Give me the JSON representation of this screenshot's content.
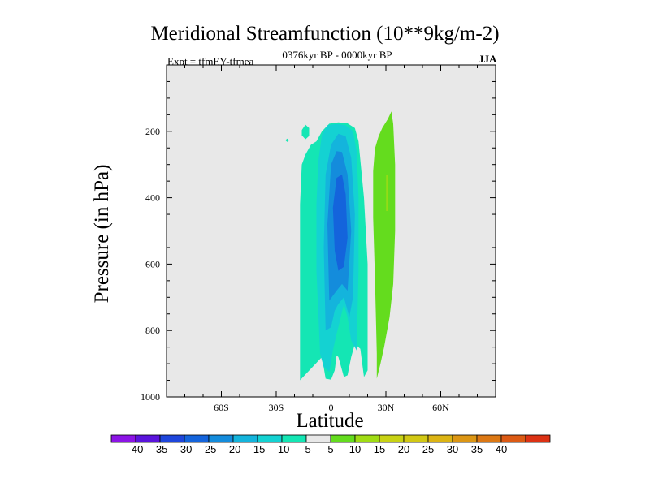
{
  "chart_data": {
    "type": "contour",
    "title": "Meridional Streamfunction (10**9kg/m-2)",
    "subtitle": "0376kyr BP - 0000kyr BP",
    "experiment": "Expt = tfmEY-tfmea",
    "season": "JJA",
    "xlabel": "Latitude",
    "ylabel": "Pressure (in hPa)",
    "xlim": [
      -90,
      90
    ],
    "ylim": [
      1000,
      0
    ],
    "x_ticks": [
      -60,
      -30,
      0,
      30,
      60
    ],
    "x_tick_labels": [
      "60S",
      "30S",
      "0",
      "30N",
      "60N"
    ],
    "y_ticks": [
      200,
      400,
      600,
      800,
      1000
    ],
    "y_tick_labels": [
      "200",
      "400",
      "600",
      "800",
      "1000"
    ],
    "background_color": "#e8e8e8",
    "colorbar": {
      "colors": [
        "#8c14e6",
        "#5a14dc",
        "#1e46dc",
        "#1464dc",
        "#148cdc",
        "#14b4dc",
        "#14d2d2",
        "#14e6b4",
        "#e8e8e8",
        "#64dc1e",
        "#a0dc14",
        "#c8d214",
        "#d2c814",
        "#dcb414",
        "#dc9614",
        "#dc7814",
        "#dc5a14",
        "#dc3214"
      ],
      "labels": [
        "-40",
        "-35",
        "-30",
        "-25",
        "-20",
        "-15",
        "-10",
        "-5",
        "5",
        "10",
        "15",
        "20",
        "25",
        "30",
        "35",
        "40"
      ]
    },
    "regions": [
      {
        "level": -5,
        "color": "#14e6b4",
        "points": [
          [
            -17,
            950
          ],
          [
            -17,
            680
          ],
          [
            -17,
            420
          ],
          [
            -16,
            300
          ],
          [
            -14,
            270
          ],
          [
            -11,
            240
          ],
          [
            -8,
            230
          ],
          [
            -5,
            200
          ],
          [
            -1,
            177
          ],
          [
            4,
            173
          ],
          [
            9,
            176
          ],
          [
            13,
            190
          ],
          [
            15,
            230
          ],
          [
            18,
            400
          ],
          [
            20,
            600
          ],
          [
            20,
            920
          ],
          [
            18,
            940
          ],
          [
            16,
            855
          ],
          [
            13,
            840
          ],
          [
            11,
            880
          ],
          [
            9,
            935
          ],
          [
            7,
            940
          ],
          [
            4,
            880
          ],
          [
            3,
            875
          ],
          [
            2,
            920
          ],
          [
            0,
            948
          ],
          [
            -3,
            945
          ],
          [
            -5,
            880
          ]
        ]
      },
      {
        "level": -5,
        "color": "#14e6b4",
        "points": [
          [
            -16,
            196
          ],
          [
            -14,
            180
          ],
          [
            -12,
            190
          ],
          [
            -12,
            214
          ],
          [
            -14,
            224
          ],
          [
            -16,
            212
          ]
        ]
      },
      {
        "level": -5,
        "color": "#14e6b4",
        "points": [
          [
            -24,
            222
          ],
          [
            -23,
            227
          ],
          [
            -24,
            232
          ],
          [
            -25,
            227
          ]
        ]
      },
      {
        "level": -10,
        "color": "#14d2d2",
        "points": [
          [
            -6,
            870
          ],
          [
            -8,
            620
          ],
          [
            -8,
            420
          ],
          [
            -7,
            290
          ],
          [
            -5,
            210
          ],
          [
            -2,
            182
          ],
          [
            3,
            178
          ],
          [
            8,
            182
          ],
          [
            12,
            200
          ],
          [
            14,
            260
          ],
          [
            15,
            400
          ],
          [
            15,
            620
          ],
          [
            14,
            860
          ],
          [
            11,
            830
          ],
          [
            9,
            760
          ],
          [
            7,
            720
          ],
          [
            4,
            790
          ],
          [
            3,
            810
          ],
          [
            1,
            860
          ],
          [
            -1,
            925
          ],
          [
            -4,
            910
          ]
        ]
      },
      {
        "level": -15,
        "color": "#14b4dc",
        "points": [
          [
            -3,
            800
          ],
          [
            -4,
            550
          ],
          [
            -3,
            330
          ],
          [
            0,
            240
          ],
          [
            4,
            207
          ],
          [
            8,
            215
          ],
          [
            11,
            280
          ],
          [
            13,
            450
          ],
          [
            12,
            700
          ],
          [
            10,
            760
          ],
          [
            7,
            700
          ],
          [
            4,
            720
          ],
          [
            2,
            740
          ],
          [
            0,
            790
          ]
        ]
      },
      {
        "level": -20,
        "color": "#148cdc",
        "points": [
          [
            -1,
            710
          ],
          [
            -2,
            480
          ],
          [
            0,
            300
          ],
          [
            3,
            260
          ],
          [
            6,
            262
          ],
          [
            9,
            330
          ],
          [
            11,
            500
          ],
          [
            9,
            680
          ],
          [
            6,
            660
          ],
          [
            3,
            680
          ]
        ]
      },
      {
        "level": -25,
        "color": "#1464dc",
        "points": [
          [
            2,
            560
          ],
          [
            1,
            430
          ],
          [
            3,
            340
          ],
          [
            6,
            330
          ],
          [
            8,
            390
          ],
          [
            9,
            520
          ],
          [
            7,
            608
          ],
          [
            4,
            620
          ]
        ]
      },
      {
        "level": 10,
        "color": "#64dc1e",
        "points": [
          [
            25,
            945
          ],
          [
            25,
            870
          ],
          [
            24,
            640
          ],
          [
            23,
            460
          ],
          [
            23,
            320
          ],
          [
            24,
            252
          ],
          [
            26,
            215
          ],
          [
            28,
            190
          ],
          [
            31,
            163
          ],
          [
            33,
            140
          ],
          [
            34,
            178
          ],
          [
            35,
            300
          ],
          [
            35,
            500
          ],
          [
            34,
            660
          ],
          [
            32,
            760
          ],
          [
            29,
            850
          ],
          [
            27,
            900
          ]
        ]
      },
      {
        "level": 15,
        "color": "#a0dc14",
        "points": [
          [
            30.2,
            440
          ],
          [
            30.2,
            330
          ],
          [
            30.8,
            330
          ],
          [
            30.8,
            440
          ]
        ]
      }
    ]
  }
}
